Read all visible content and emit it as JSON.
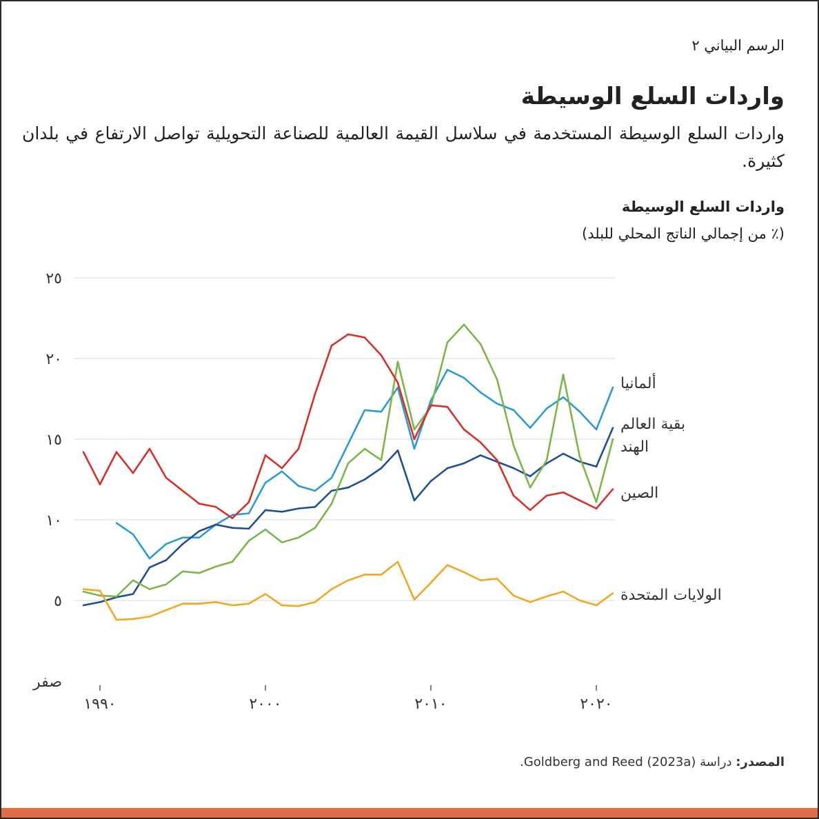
{
  "header": {
    "figure_number": "الرسم البياني ٢",
    "title": "واردات السلع الوسيطة",
    "subtitle": "واردات السلع الوسيطة المستخدمة في سلاسل القيمة العالمية للصناعة التحويلية تواصل الارتفاع في بلدان كثيرة."
  },
  "footer": {
    "source_label": "المصدر:",
    "source_text": " دراسة Goldberg and Reed (2023a)."
  },
  "colors": {
    "accent_bar": "#e06c48"
  },
  "chart_data": {
    "type": "line",
    "title": "واردات السلع الوسيطة",
    "ylabel": "(٪ من إجمالي الناتج المحلي للبلد)",
    "xlabel": "",
    "ylim": [
      0,
      25
    ],
    "xlim": [
      1989,
      2021
    ],
    "grid": true,
    "legend": "inline-right",
    "y_ticks": [
      {
        "value": 0,
        "label": "صفر"
      },
      {
        "value": 5,
        "label": "٥"
      },
      {
        "value": 10,
        "label": "١٠"
      },
      {
        "value": 15,
        "label": "١٥"
      },
      {
        "value": 20,
        "label": "٢٠"
      },
      {
        "value": 25,
        "label": "٢٥"
      }
    ],
    "x_ticks": [
      {
        "value": 1990,
        "label": "١٩٩٠"
      },
      {
        "value": 2000,
        "label": "٢٠٠٠"
      },
      {
        "value": 2010,
        "label": "٢٠١٠"
      },
      {
        "value": 2020,
        "label": "٢٠٢٠"
      }
    ],
    "series": [
      {
        "name": "ألمانيا",
        "color": "#2b9ad6",
        "start": 1991,
        "values": [
          9.8,
          9.1,
          7.6,
          8.5,
          8.9,
          8.9,
          9.7,
          10.3,
          10.4,
          12.3,
          13.0,
          12.1,
          11.8,
          12.6,
          14.7,
          16.8,
          16.7,
          18.2,
          14.4,
          17.4,
          19.3,
          18.8,
          17.9,
          17.2,
          16.8,
          15.7,
          16.9,
          17.6,
          16.7,
          15.6,
          18.2
        ]
      },
      {
        "name": "بقية العالم",
        "color": "#1f4e96",
        "start": 1989,
        "values": [
          4.7,
          4.9,
          5.2,
          5.4,
          7.05,
          7.5,
          8.5,
          9.3,
          9.7,
          9.5,
          9.45,
          10.6,
          10.5,
          10.7,
          10.8,
          11.8,
          12.0,
          12.5,
          13.2,
          14.3,
          11.2,
          12.4,
          13.2,
          13.5,
          14.0,
          13.6,
          13.2,
          12.7,
          13.5,
          14.1,
          13.6,
          13.3,
          15.7
        ]
      },
      {
        "name": "الهند",
        "color": "#7ab648",
        "start": 1989,
        "values": [
          5.55,
          5.3,
          5.25,
          6.25,
          5.7,
          6.0,
          6.8,
          6.7,
          7.1,
          7.4,
          8.7,
          9.4,
          8.6,
          8.9,
          9.5,
          11.0,
          13.5,
          14.4,
          13.7,
          19.8,
          15.6,
          17.0,
          21.0,
          22.1,
          20.9,
          18.7,
          14.6,
          12.0,
          13.7,
          19.0,
          13.9,
          11.1,
          15.0
        ]
      },
      {
        "name": "الصين",
        "color": "#d63027",
        "start": 1989,
        "values": [
          14.2,
          12.2,
          14.2,
          12.9,
          14.4,
          12.6,
          11.8,
          11.0,
          10.8,
          10.1,
          11.1,
          14.0,
          13.2,
          14.4,
          17.8,
          20.8,
          21.5,
          21.3,
          20.2,
          18.5,
          15.0,
          17.1,
          17.0,
          15.6,
          14.8,
          13.7,
          11.5,
          10.6,
          11.5,
          11.7,
          11.2,
          10.7,
          11.9
        ]
      },
      {
        "name": "الولايات المتحدة",
        "color": "#f0a823",
        "start": 1989,
        "values": [
          5.7,
          5.6,
          3.8,
          3.85,
          4.0,
          4.4,
          4.8,
          4.8,
          4.9,
          4.7,
          4.8,
          5.4,
          4.7,
          4.65,
          4.9,
          5.7,
          6.25,
          6.6,
          6.6,
          7.4,
          5.05,
          6.1,
          7.2,
          6.75,
          6.25,
          6.35,
          5.3,
          4.9,
          5.25,
          5.55,
          5.0,
          4.7,
          5.45
        ]
      }
    ]
  }
}
